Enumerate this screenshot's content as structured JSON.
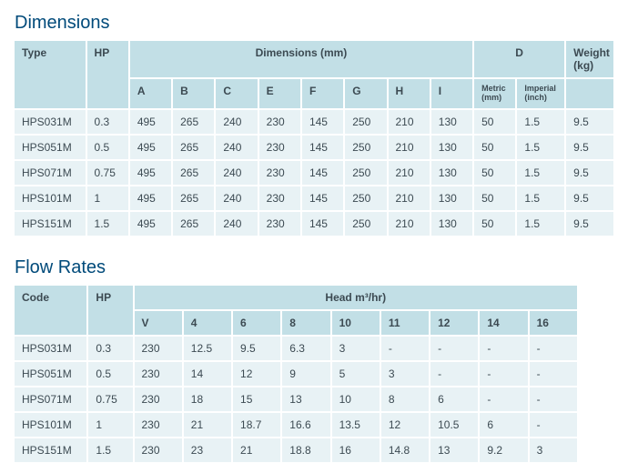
{
  "dimensions": {
    "title": "Dimensions",
    "headers": {
      "type": "Type",
      "hp": "HP",
      "dims": "Dimensions (mm)",
      "d": "D",
      "weight": "Weight",
      "weight_unit": "(kg)",
      "cols": [
        "A",
        "B",
        "C",
        "E",
        "F",
        "G",
        "H",
        "I"
      ],
      "d_metric": "Metric",
      "d_metric_unit": "(mm)",
      "d_imperial": "Imperial",
      "d_imperial_unit": "(inch)"
    },
    "rows": [
      {
        "type": "HPS031M",
        "hp": "0.3",
        "a": "495",
        "b": "265",
        "c": "240",
        "e": "230",
        "f": "145",
        "g": "250",
        "h": "210",
        "i": "130",
        "dm": "50",
        "di": "1.5",
        "w": "9.5"
      },
      {
        "type": "HPS051M",
        "hp": "0.5",
        "a": "495",
        "b": "265",
        "c": "240",
        "e": "230",
        "f": "145",
        "g": "250",
        "h": "210",
        "i": "130",
        "dm": "50",
        "di": "1.5",
        "w": "9.5"
      },
      {
        "type": "HPS071M",
        "hp": "0.75",
        "a": "495",
        "b": "265",
        "c": "240",
        "e": "230",
        "f": "145",
        "g": "250",
        "h": "210",
        "i": "130",
        "dm": "50",
        "di": "1.5",
        "w": "9.5"
      },
      {
        "type": "HPS101M",
        "hp": "1",
        "a": "495",
        "b": "265",
        "c": "240",
        "e": "230",
        "f": "145",
        "g": "250",
        "h": "210",
        "i": "130",
        "dm": "50",
        "di": "1.5",
        "w": "9.5"
      },
      {
        "type": "HPS151M",
        "hp": "1.5",
        "a": "495",
        "b": "265",
        "c": "240",
        "e": "230",
        "f": "145",
        "g": "250",
        "h": "210",
        "i": "130",
        "dm": "50",
        "di": "1.5",
        "w": "9.5"
      }
    ]
  },
  "flow": {
    "title": "Flow Rates",
    "headers": {
      "code": "Code",
      "hp": "HP",
      "head": "Head m³/hr)",
      "cols": [
        "V",
        "4",
        "6",
        "8",
        "10",
        "11",
        "12",
        "14",
        "16"
      ]
    },
    "rows": [
      {
        "code": "HPS031M",
        "hp": "0.3",
        "v": "230",
        "c4": "12.5",
        "c6": "9.5",
        "c8": "6.3",
        "c10": "3",
        "c11": "-",
        "c12": "-",
        "c14": "-",
        "c16": "-"
      },
      {
        "code": "HPS051M",
        "hp": "0.5",
        "v": "230",
        "c4": "14",
        "c6": "12",
        "c8": "9",
        "c10": "5",
        "c11": "3",
        "c12": "-",
        "c14": "-",
        "c16": "-"
      },
      {
        "code": "HPS071M",
        "hp": "0.75",
        "v": "230",
        "c4": "18",
        "c6": "15",
        "c8": "13",
        "c10": "10",
        "c11": "8",
        "c12": "6",
        "c14": "-",
        "c16": "-"
      },
      {
        "code": "HPS101M",
        "hp": "1",
        "v": "230",
        "c4": "21",
        "c6": "18.7",
        "c8": "16.6",
        "c10": "13.5",
        "c11": "12",
        "c12": "10.5",
        "c14": "6",
        "c16": "-"
      },
      {
        "code": "HPS151M",
        "hp": "1.5",
        "v": "230",
        "c4": "23",
        "c6": "21",
        "c8": "18.8",
        "c10": "16",
        "c11": "14.8",
        "c12": "13",
        "c14": "9.2",
        "c16": "3"
      }
    ]
  },
  "style": {
    "header_bg": "#c2dfe6",
    "cell_bg": "#e8f2f5",
    "title_color": "#004a7a",
    "text_color": "#3c4a52",
    "font_family": "Arial",
    "title_fontsize": 20,
    "body_fontsize": 12
  }
}
